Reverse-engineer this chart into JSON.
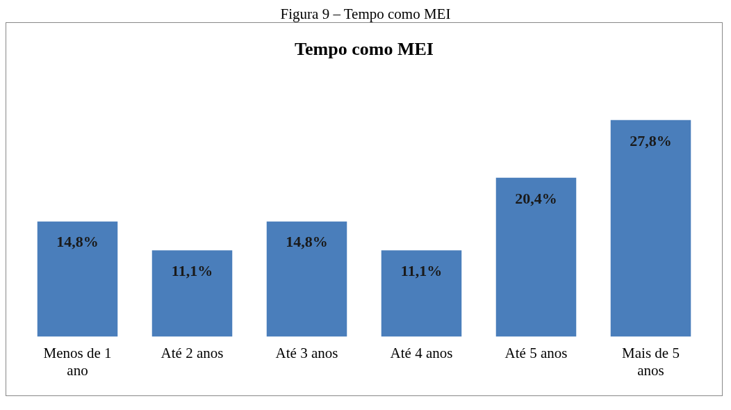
{
  "chart_data": {
    "type": "bar",
    "title": "Tempo como MEI",
    "annotations": [
      "Figura 9 – Tempo como MEI"
    ],
    "categories": [
      "Menos de 1 ano",
      "Até 2 anos",
      "Até 3 anos",
      "Até 4 anos",
      "Até 5 anos",
      "Mais de 5 anos"
    ],
    "values": [
      14.8,
      11.1,
      14.8,
      11.1,
      20.4,
      27.8
    ],
    "value_labels": [
      "14,8%",
      "11,1%",
      "14,8%",
      "11,1%",
      "20,4%",
      "27,8%"
    ],
    "color": "#4a7ebb",
    "grid": false,
    "legend": false
  }
}
